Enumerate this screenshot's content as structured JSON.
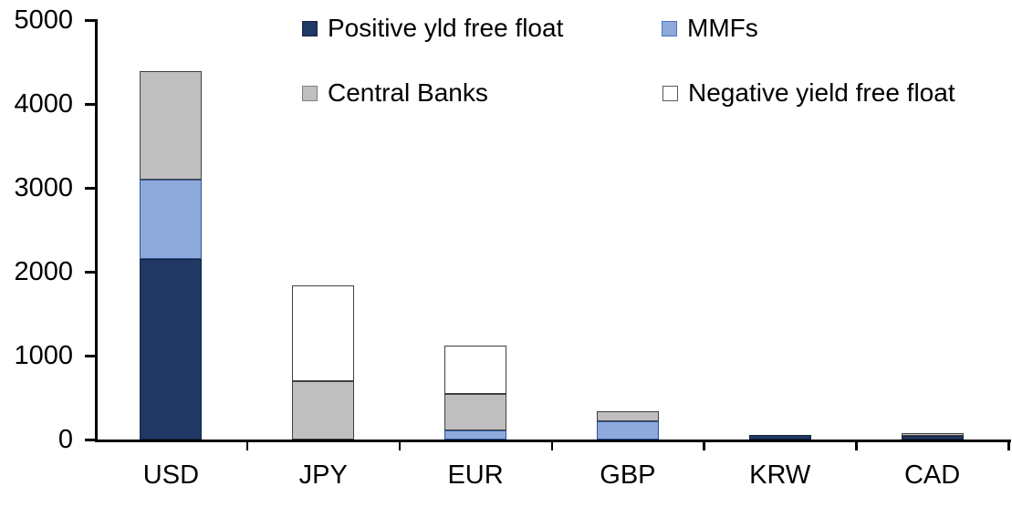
{
  "chart_data": {
    "type": "bar",
    "stacked": true,
    "title": "",
    "xlabel": "",
    "ylabel": "",
    "categories": [
      "USD",
      "JPY",
      "EUR",
      "GBP",
      "KRW",
      "CAD"
    ],
    "series": [
      {
        "name": "Positive yld free float",
        "color": "#1F3864",
        "border": "#17233E",
        "values": [
          2150,
          0,
          0,
          0,
          50,
          40
        ]
      },
      {
        "name": "MMFs",
        "color": "#8EA9DB",
        "border": "#2F5597",
        "values": [
          950,
          0,
          110,
          220,
          0,
          0
        ]
      },
      {
        "name": "Central Banks",
        "color": "#BFBFBF",
        "border": "#404040",
        "values": [
          1290,
          700,
          430,
          115,
          0,
          35
        ]
      },
      {
        "name": "Negative yield free float",
        "color": "#FFFFFF",
        "border": "#404040",
        "values": [
          0,
          1140,
          580,
          0,
          0,
          0
        ]
      }
    ],
    "totals": [
      4390,
      1840,
      1120,
      335,
      50,
      75
    ],
    "ylim": [
      0,
      5000
    ],
    "yticks": [
      0,
      1000,
      2000,
      3000,
      4000,
      5000
    ],
    "grid": false,
    "legend_position": "top",
    "legend_order": [
      [
        "Positive yld free float",
        "MMFs"
      ],
      [
        "Central Banks",
        "Negative yield free float"
      ]
    ],
    "axis_color": "#000000",
    "background_color": "#FFFFFF"
  }
}
